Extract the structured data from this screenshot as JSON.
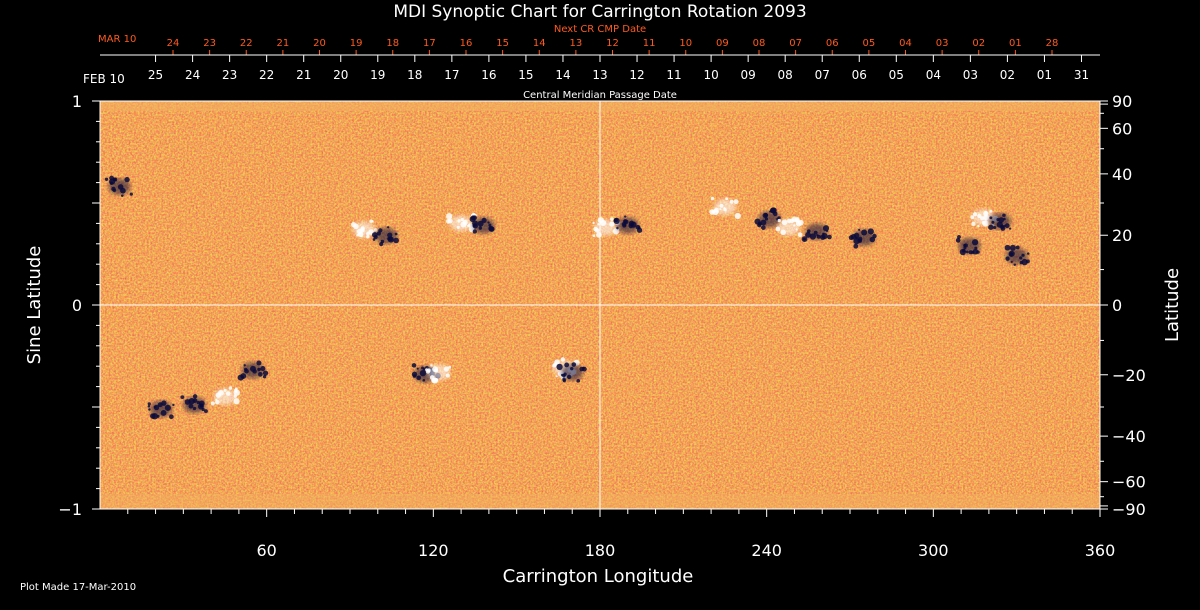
{
  "chart_data": {
    "type": "heatmap",
    "title": "MDI Synoptic Chart for Carrington Rotation 2093",
    "xlabel": "Carrington Longitude",
    "ylabel_left": "Sine Latitude",
    "ylabel_right": "Latitude",
    "xlim": [
      0,
      360
    ],
    "ylim": [
      -1,
      1
    ],
    "x_ticks": [
      60,
      120,
      180,
      240,
      300,
      360
    ],
    "y_ticks_left": [
      1,
      0,
      -1
    ],
    "y_tick_labels_left": [
      "1",
      "0",
      "−1"
    ],
    "y_ticks_right": [
      90,
      60,
      40,
      20,
      0,
      -20,
      -40,
      -60,
      -90
    ],
    "y_tick_labels_right": [
      "90",
      "60",
      "40",
      "20",
      "0",
      "−20",
      "−40",
      "−60",
      "−90"
    ],
    "cmp_caption": "Central Meridian Passage Date",
    "cmp_month_label": "FEB 10",
    "cmp_dates": [
      "25",
      "24",
      "23",
      "22",
      "21",
      "20",
      "19",
      "18",
      "17",
      "16",
      "15",
      "14",
      "13",
      "12",
      "11",
      "10",
      "09",
      "08",
      "07",
      "06",
      "05",
      "04",
      "03",
      "02",
      "01",
      "31"
    ],
    "next_cr_caption": "Next CR CMP Date",
    "next_cr_month_label": "MAR 10",
    "next_cr_dates": [
      "24",
      "23",
      "22",
      "21",
      "20",
      "19",
      "18",
      "17",
      "16",
      "15",
      "14",
      "13",
      "12",
      "11",
      "10",
      "09",
      "08",
      "07",
      "06",
      "05",
      "04",
      "03",
      "02",
      "01",
      "28"
    ],
    "footer": "Plot Made 17-Mar-2010",
    "colors": {
      "background": "#000000",
      "field": "#d8401a",
      "positive": "#ffffff",
      "negative": "#0a0a3a",
      "label_accent": "#ff5a1e",
      "axis": "#ffffff"
    },
    "active_regions": [
      {
        "lon": 95,
        "sinlat": 0.37,
        "polarity": "positive"
      },
      {
        "lon": 103,
        "sinlat": 0.34,
        "polarity": "negative"
      },
      {
        "lon": 130,
        "sinlat": 0.4,
        "polarity": "positive"
      },
      {
        "lon": 138,
        "sinlat": 0.39,
        "polarity": "negative"
      },
      {
        "lon": 182,
        "sinlat": 0.38,
        "polarity": "positive"
      },
      {
        "lon": 190,
        "sinlat": 0.39,
        "polarity": "negative"
      },
      {
        "lon": 225,
        "sinlat": 0.48,
        "polarity": "positive"
      },
      {
        "lon": 241,
        "sinlat": 0.42,
        "polarity": "negative"
      },
      {
        "lon": 248,
        "sinlat": 0.38,
        "polarity": "positive"
      },
      {
        "lon": 258,
        "sinlat": 0.36,
        "polarity": "negative"
      },
      {
        "lon": 275,
        "sinlat": 0.33,
        "polarity": "negative"
      },
      {
        "lon": 318,
        "sinlat": 0.43,
        "polarity": "positive"
      },
      {
        "lon": 324,
        "sinlat": 0.41,
        "polarity": "negative"
      },
      {
        "lon": 313,
        "sinlat": 0.29,
        "polarity": "negative"
      },
      {
        "lon": 330,
        "sinlat": 0.24,
        "polarity": "negative"
      },
      {
        "lon": 7,
        "sinlat": 0.58,
        "polarity": "negative"
      },
      {
        "lon": 55,
        "sinlat": -0.32,
        "polarity": "negative"
      },
      {
        "lon": 45,
        "sinlat": -0.45,
        "polarity": "positive"
      },
      {
        "lon": 34,
        "sinlat": -0.49,
        "polarity": "negative"
      },
      {
        "lon": 22,
        "sinlat": -0.51,
        "polarity": "negative"
      },
      {
        "lon": 117,
        "sinlat": -0.34,
        "polarity": "negative"
      },
      {
        "lon": 122,
        "sinlat": -0.33,
        "polarity": "positive"
      },
      {
        "lon": 167,
        "sinlat": -0.31,
        "polarity": "positive"
      },
      {
        "lon": 170,
        "sinlat": -0.33,
        "polarity": "negative"
      }
    ]
  }
}
